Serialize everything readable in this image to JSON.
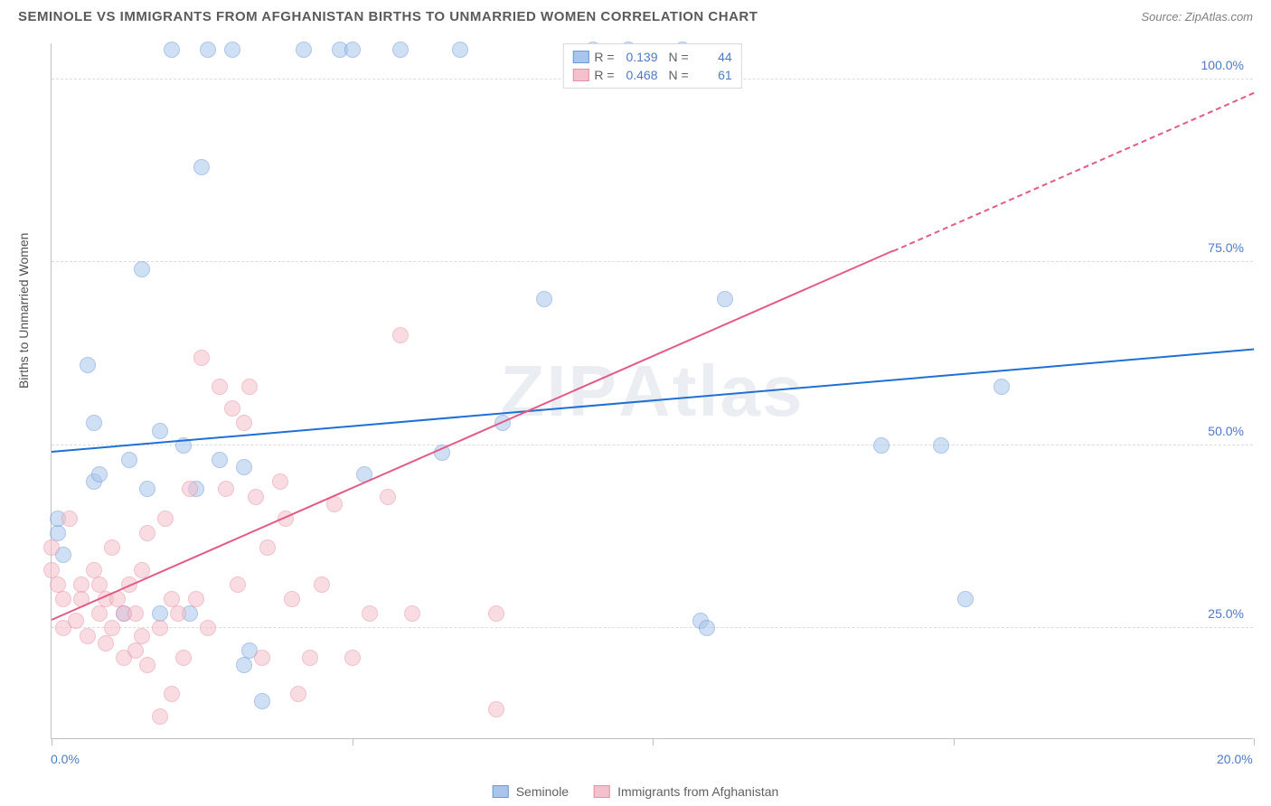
{
  "title": "SEMINOLE VS IMMIGRANTS FROM AFGHANISTAN BIRTHS TO UNMARRIED WOMEN CORRELATION CHART",
  "source": "Source: ZipAtlas.com",
  "watermark": "ZIPAtlas",
  "chart": {
    "type": "scatter",
    "ylabel": "Births to Unmarried Women",
    "background_color": "#ffffff",
    "grid_color": "#dcdcdc",
    "axis_color": "#c0c0c0",
    "label_color": "#4a7bc8",
    "xlim": [
      0,
      20
    ],
    "ylim": [
      10,
      105
    ],
    "xtick_positions": [
      0,
      5,
      10,
      15,
      20
    ],
    "xtick_labels": {
      "0": "0.0%",
      "20": "20.0%"
    },
    "ytick_positions": [
      25,
      50,
      75,
      100
    ],
    "ytick_labels": {
      "25": "25.0%",
      "50": "50.0%",
      "75": "75.0%",
      "100": "100.0%"
    },
    "marker_radius": 9,
    "marker_opacity": 0.55,
    "line_width": 2,
    "series": [
      {
        "name": "Seminole",
        "color_fill": "#a9c5ec",
        "color_stroke": "#6b98d6",
        "line_color": "#1f6fd4",
        "R": "0.139",
        "N": "44",
        "trend": {
          "x1": 0,
          "y1": 49,
          "x2": 20,
          "y2": 63
        },
        "points": [
          [
            0.1,
            38
          ],
          [
            0.1,
            40
          ],
          [
            0.2,
            35
          ],
          [
            0.6,
            61
          ],
          [
            0.7,
            45
          ],
          [
            0.7,
            53
          ],
          [
            0.8,
            46
          ],
          [
            1.2,
            27
          ],
          [
            1.3,
            48
          ],
          [
            1.5,
            74
          ],
          [
            1.6,
            44
          ],
          [
            1.8,
            52
          ],
          [
            1.8,
            27
          ],
          [
            2.0,
            104
          ],
          [
            2.2,
            50
          ],
          [
            2.3,
            27
          ],
          [
            2.4,
            44
          ],
          [
            2.5,
            88
          ],
          [
            2.6,
            104
          ],
          [
            2.8,
            48
          ],
          [
            3.0,
            104
          ],
          [
            3.2,
            47
          ],
          [
            3.2,
            20
          ],
          [
            3.3,
            22
          ],
          [
            3.5,
            15
          ],
          [
            4.2,
            104
          ],
          [
            4.8,
            104
          ],
          [
            5.0,
            104
          ],
          [
            5.2,
            46
          ],
          [
            5.8,
            104
          ],
          [
            6.5,
            49
          ],
          [
            6.8,
            104
          ],
          [
            7.5,
            53
          ],
          [
            8.2,
            70
          ],
          [
            9.0,
            104
          ],
          [
            9.6,
            104
          ],
          [
            10.5,
            104
          ],
          [
            10.8,
            26
          ],
          [
            10.9,
            25
          ],
          [
            11.2,
            70
          ],
          [
            13.8,
            50
          ],
          [
            14.8,
            50
          ],
          [
            15.2,
            29
          ],
          [
            15.8,
            58
          ]
        ]
      },
      {
        "name": "Immigrants from Afghanistan",
        "color_fill": "#f4c0cb",
        "color_stroke": "#e78fa4",
        "line_color": "#e35a87",
        "R": "0.468",
        "N": "61",
        "trend": {
          "x1": 0,
          "y1": 26,
          "x2": 20,
          "y2": 98
        },
        "trend_dash_after_x": 14,
        "points": [
          [
            0.0,
            36
          ],
          [
            0.0,
            33
          ],
          [
            0.1,
            31
          ],
          [
            0.2,
            29
          ],
          [
            0.2,
            25
          ],
          [
            0.3,
            40
          ],
          [
            0.4,
            26
          ],
          [
            0.5,
            31
          ],
          [
            0.5,
            29
          ],
          [
            0.6,
            24
          ],
          [
            0.7,
            33
          ],
          [
            0.8,
            27
          ],
          [
            0.8,
            31
          ],
          [
            0.9,
            23
          ],
          [
            0.9,
            29
          ],
          [
            1.0,
            36
          ],
          [
            1.0,
            25
          ],
          [
            1.1,
            29
          ],
          [
            1.2,
            27
          ],
          [
            1.2,
            21
          ],
          [
            1.3,
            31
          ],
          [
            1.4,
            22
          ],
          [
            1.4,
            27
          ],
          [
            1.5,
            33
          ],
          [
            1.5,
            24
          ],
          [
            1.6,
            38
          ],
          [
            1.6,
            20
          ],
          [
            1.8,
            13
          ],
          [
            1.8,
            25
          ],
          [
            1.9,
            40
          ],
          [
            2.0,
            29
          ],
          [
            2.0,
            16
          ],
          [
            2.1,
            27
          ],
          [
            2.2,
            21
          ],
          [
            2.3,
            44
          ],
          [
            2.4,
            29
          ],
          [
            2.5,
            62
          ],
          [
            2.6,
            25
          ],
          [
            2.8,
            58
          ],
          [
            2.9,
            44
          ],
          [
            3.0,
            55
          ],
          [
            3.1,
            31
          ],
          [
            3.2,
            53
          ],
          [
            3.3,
            58
          ],
          [
            3.4,
            43
          ],
          [
            3.5,
            21
          ],
          [
            3.6,
            36
          ],
          [
            3.8,
            45
          ],
          [
            3.9,
            40
          ],
          [
            4.0,
            29
          ],
          [
            4.1,
            16
          ],
          [
            4.3,
            21
          ],
          [
            4.5,
            31
          ],
          [
            4.7,
            42
          ],
          [
            5.0,
            21
          ],
          [
            5.3,
            27
          ],
          [
            5.6,
            43
          ],
          [
            5.8,
            65
          ],
          [
            6.0,
            27
          ],
          [
            7.4,
            14
          ],
          [
            7.4,
            27
          ]
        ]
      }
    ]
  },
  "legend_bottom": [
    {
      "label": "Seminole",
      "fill": "#a9c5ec",
      "stroke": "#6b98d6"
    },
    {
      "label": "Immigrants from Afghanistan",
      "fill": "#f4c0cb",
      "stroke": "#e78fa4"
    }
  ]
}
